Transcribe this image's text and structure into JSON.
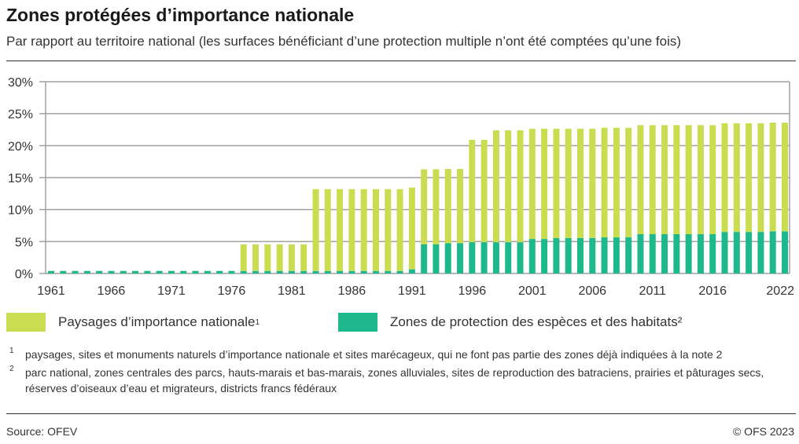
{
  "header": {
    "title": "Zones protégées d’importance nationale",
    "subtitle": "Par rapport au territoire national (les surfaces bénéficiant d’une protection multiple n’ont été comptées qu’une fois)"
  },
  "chart_data": {
    "type": "bar",
    "stacked": true,
    "title": "",
    "xlabel": "",
    "ylabel": "",
    "ylim": [
      0,
      30
    ],
    "yticks": [
      "0%",
      "5%",
      "10%",
      "15%",
      "20%",
      "25%",
      "30%"
    ],
    "xtick_labels": [
      "1961",
      "1966",
      "1971",
      "1976",
      "1981",
      "1986",
      "1991",
      "1996",
      "2001",
      "2006",
      "2011",
      "2016",
      "2022"
    ],
    "grid": true,
    "legend_position": "bottom",
    "colors": {
      "landscapes": "#cadc4f",
      "species": "#1db98c"
    },
    "categories": [
      1961,
      1962,
      1963,
      1964,
      1965,
      1966,
      1967,
      1968,
      1969,
      1970,
      1971,
      1972,
      1973,
      1974,
      1975,
      1976,
      1977,
      1978,
      1979,
      1980,
      1981,
      1982,
      1983,
      1984,
      1985,
      1986,
      1987,
      1988,
      1989,
      1990,
      1991,
      1992,
      1993,
      1994,
      1995,
      1996,
      1997,
      1998,
      1999,
      2000,
      2001,
      2002,
      2003,
      2004,
      2005,
      2006,
      2007,
      2008,
      2009,
      2010,
      2011,
      2012,
      2013,
      2014,
      2015,
      2016,
      2017,
      2018,
      2019,
      2020,
      2021,
      2022
    ],
    "series": [
      {
        "name": "Zones de protection des espèces et des habitats²",
        "values": [
          0.4,
          0.4,
          0.4,
          0.4,
          0.4,
          0.4,
          0.4,
          0.4,
          0.4,
          0.4,
          0.4,
          0.4,
          0.4,
          0.4,
          0.4,
          0.4,
          0.4,
          0.4,
          0.4,
          0.4,
          0.4,
          0.4,
          0.4,
          0.4,
          0.4,
          0.4,
          0.4,
          0.4,
          0.4,
          0.4,
          0.65,
          4.55,
          4.55,
          4.75,
          4.75,
          4.9,
          4.9,
          4.9,
          4.9,
          4.9,
          5.4,
          5.4,
          5.55,
          5.55,
          5.55,
          5.55,
          5.65,
          5.65,
          5.65,
          6.15,
          6.15,
          6.15,
          6.15,
          6.15,
          6.15,
          6.15,
          6.5,
          6.5,
          6.5,
          6.5,
          6.6,
          6.6
        ]
      },
      {
        "name": "Paysages d’importance nationale¹",
        "values": [
          0,
          0,
          0,
          0,
          0,
          0,
          0,
          0,
          0,
          0,
          0,
          0,
          0,
          0,
          0,
          0,
          4.15,
          4.15,
          4.15,
          4.15,
          4.15,
          4.15,
          12.8,
          12.8,
          12.8,
          12.8,
          12.8,
          12.8,
          12.8,
          12.8,
          12.8,
          11.75,
          11.75,
          11.6,
          11.6,
          16.0,
          16.0,
          17.5,
          17.5,
          17.5,
          17.25,
          17.25,
          17.1,
          17.1,
          17.1,
          17.1,
          17.15,
          17.15,
          17.15,
          17.05,
          17.05,
          17.05,
          17.05,
          17.05,
          17.05,
          17.05,
          17.0,
          17.0,
          17.0,
          17.0,
          17.0,
          17.0
        ]
      }
    ]
  },
  "legend": {
    "landscapes_label": "Paysages d’importance nationale",
    "landscapes_sup": "1",
    "species_label": "Zones de protection des espèces et des habitats²"
  },
  "footnotes": [
    {
      "num": "1",
      "text": "paysages, sites et monuments naturels d’importance nationale et sites marécageux, qui ne font pas partie des zones déjà indiquées à la note 2"
    },
    {
      "num": "2",
      "text": "parc national, zones centrales des parcs, hauts-marais et bas-marais, zones alluviales, sites de reproduction des batraciens, prairies et pâturages secs, réserves d’oiseaux d’eau et migrateurs, districts francs fédéraux"
    }
  ],
  "footer": {
    "source": "Source: OFEV",
    "copyright": "© OFS 2023"
  }
}
